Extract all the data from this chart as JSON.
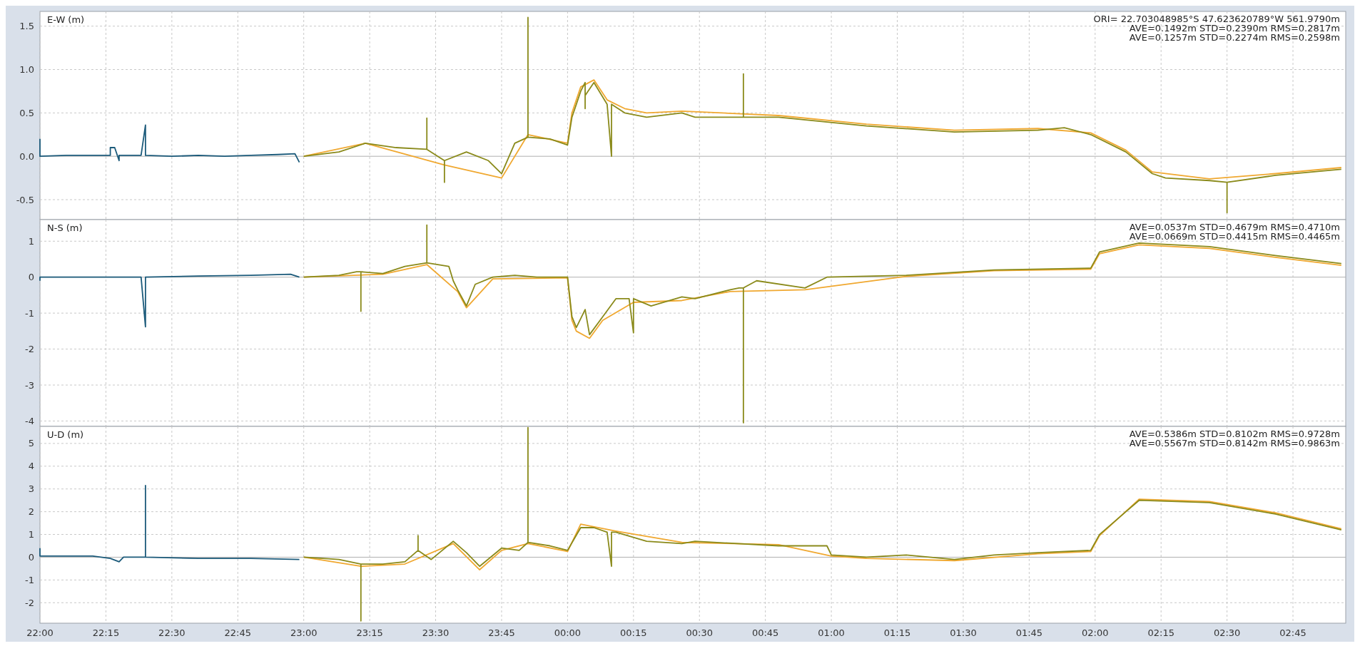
{
  "chart_data": [
    {
      "type": "line",
      "ylabel": "E-W (m)",
      "annotations": [
        "ORI= 22.703048985°S   47.623620789°W 561.9790m",
        "AVE=0.1492m STD=0.2390m RMS=0.2817m",
        "AVE=0.1257m STD=0.2274m RMS=0.2598m"
      ],
      "xlim": [
        "2000-01-01T22:00",
        "2000-01-02T02:57"
      ],
      "xticks": [
        {
          "value": "2000-01-01T22:00",
          "label": null
        },
        {
          "value": "2000-01-01T22:15",
          "label": null
        },
        {
          "value": "2000-01-01T22:30",
          "label": null
        },
        {
          "value": "2000-01-01T22:45",
          "label": null
        },
        {
          "value": "2000-01-01T23:00",
          "label": null
        },
        {
          "value": "2000-01-01T23:15",
          "label": null
        },
        {
          "value": "2000-01-01T23:30",
          "label": null
        },
        {
          "value": "2000-01-01T23:45",
          "label": null
        },
        {
          "value": "2000-01-02T00:00",
          "label": null
        },
        {
          "value": "2000-01-02T00:15",
          "label": null
        },
        {
          "value": "2000-01-02T00:30",
          "label": null
        },
        {
          "value": "2000-01-02T00:45",
          "label": null
        },
        {
          "value": "2000-01-02T01:00",
          "label": null
        },
        {
          "value": "2000-01-02T01:15",
          "label": null
        },
        {
          "value": "2000-01-02T01:30",
          "label": null
        },
        {
          "value": "2000-01-02T01:45",
          "label": null
        },
        {
          "value": "2000-01-02T02:00",
          "label": null
        },
        {
          "value": "2000-01-02T02:15",
          "label": null
        },
        {
          "value": "2000-01-02T02:30",
          "label": null
        },
        {
          "value": "2000-01-02T02:45",
          "label": null
        }
      ],
      "ylim": [
        -0.73,
        1.67
      ],
      "yticks": [
        {
          "value": -0.5,
          "label": "-0.5"
        },
        {
          "value": 0,
          "label": "0.0"
        },
        {
          "value": 0.5,
          "label": "0.5"
        },
        {
          "value": 1,
          "label": "1.0"
        },
        {
          "value": 1.5,
          "label": "1.5"
        }
      ],
      "grid": true,
      "tick_labels": "y",
      "series": [
        {
          "color": "#1b5a7a",
          "x": [
            "2000-01-01T22:00",
            "2000-01-01T22:00",
            "2000-01-01T22:06",
            "2000-01-01T22:12",
            "2000-01-01T22:16",
            "2000-01-01T22:16",
            "2000-01-01T22:17",
            "2000-01-01T22:18",
            "2000-01-01T22:18",
            "2000-01-01T22:23",
            "2000-01-01T22:24",
            "2000-01-01T22:24",
            "2000-01-01T22:30",
            "2000-01-01T22:36",
            "2000-01-01T22:42",
            "2000-01-01T22:48",
            "2000-01-01T22:54",
            "2000-01-01T22:58",
            "2000-01-01T22:59"
          ],
          "values": [
            0.2,
            0,
            0.01,
            0.01,
            0.01,
            0.1,
            0.1,
            -0.05,
            0.01,
            0.01,
            0.36,
            0.01,
            0,
            0.01,
            0,
            0.01,
            0.02,
            0.03,
            -0.07
          ]
        },
        {
          "color": "#f0a830",
          "x": [
            "2000-01-01T23:00",
            "2000-01-01T23:14",
            "2000-01-01T23:32",
            "2000-01-01T23:45",
            "2000-01-01T23:51",
            "2000-01-02T00:00",
            "2000-01-02T00:01",
            "2000-01-02T00:03",
            "2000-01-02T00:06",
            "2000-01-02T00:09",
            "2000-01-02T00:13",
            "2000-01-02T00:18",
            "2000-01-02T00:26",
            "2000-01-02T00:48",
            "2000-01-02T01:08",
            "2000-01-02T01:28",
            "2000-01-02T01:47",
            "2000-01-02T01:59",
            "2000-01-02T02:07",
            "2000-01-02T02:13",
            "2000-01-02T02:26",
            "2000-01-02T02:41",
            "2000-01-02T02:56"
          ],
          "values": [
            0,
            0.15,
            -0.1,
            -0.25,
            0.25,
            0.15,
            0.5,
            0.8,
            0.88,
            0.65,
            0.55,
            0.5,
            0.52,
            0.47,
            0.37,
            0.3,
            0.32,
            0.27,
            0.07,
            -0.18,
            -0.26,
            -0.2,
            -0.13
          ]
        },
        {
          "color": "#8a8a1a",
          "x": [
            "2000-01-01T23:00",
            "2000-01-01T23:08",
            "2000-01-01T23:14",
            "2000-01-01T23:21",
            "2000-01-01T23:28",
            "2000-01-01T23:28",
            "2000-01-01T23:28",
            "2000-01-01T23:32",
            "2000-01-01T23:32",
            "2000-01-01T23:32",
            "2000-01-01T23:37",
            "2000-01-01T23:42",
            "2000-01-01T23:45",
            "2000-01-01T23:48",
            "2000-01-01T23:51",
            "2000-01-01T23:51",
            "2000-01-01T23:51",
            "2000-01-01T23:56",
            "2000-01-02T00:00",
            "2000-01-02T00:01",
            "2000-01-02T00:03",
            "2000-01-02T00:04",
            "2000-01-02T00:04",
            "2000-01-02T00:04",
            "2000-01-02T00:06",
            "2000-01-02T00:09",
            "2000-01-02T00:10",
            "2000-01-02T00:10",
            "2000-01-02T00:13",
            "2000-01-02T00:18",
            "2000-01-02T00:26",
            "2000-01-02T00:29",
            "2000-01-02T00:40",
            "2000-01-02T00:40",
            "2000-01-02T00:40",
            "2000-01-02T00:48",
            "2000-01-02T01:08",
            "2000-01-02T01:28",
            "2000-01-02T01:47",
            "2000-01-02T01:53",
            "2000-01-02T01:59",
            "2000-01-02T02:07",
            "2000-01-02T02:13",
            "2000-01-02T02:16",
            "2000-01-02T02:26",
            "2000-01-02T02:30",
            "2000-01-02T02:30",
            "2000-01-02T02:30",
            "2000-01-02T02:41",
            "2000-01-02T02:56"
          ],
          "values": [
            0,
            0.05,
            0.15,
            0.1,
            0.08,
            0.44,
            0.08,
            -0.05,
            -0.3,
            -0.05,
            0.05,
            -0.05,
            -0.2,
            0.15,
            0.22,
            1.6,
            0.22,
            0.2,
            0.13,
            0.45,
            0.75,
            0.85,
            0.55,
            0.7,
            0.85,
            0.6,
            0,
            0.6,
            0.5,
            0.45,
            0.5,
            0.45,
            0.45,
            0.95,
            0.45,
            0.45,
            0.35,
            0.28,
            0.3,
            0.33,
            0.25,
            0.05,
            -0.2,
            -0.25,
            -0.28,
            -0.3,
            -0.65,
            -0.3,
            -0.22,
            -0.15
          ]
        }
      ]
    },
    {
      "type": "line",
      "ylabel": "N-S (m)",
      "annotations": [
        "AVE=0.0537m STD=0.4679m RMS=0.4710m",
        "AVE=0.0669m STD=0.4415m RMS=0.4465m"
      ],
      "xlim": [
        "2000-01-01T22:00",
        "2000-01-02T02:57"
      ],
      "xticks": [
        {
          "value": "2000-01-01T22:00",
          "label": null
        },
        {
          "value": "2000-01-01T22:15",
          "label": null
        },
        {
          "value": "2000-01-01T22:30",
          "label": null
        },
        {
          "value": "2000-01-01T22:45",
          "label": null
        },
        {
          "value": "2000-01-01T23:00",
          "label": null
        },
        {
          "value": "2000-01-01T23:15",
          "label": null
        },
        {
          "value": "2000-01-01T23:30",
          "label": null
        },
        {
          "value": "2000-01-01T23:45",
          "label": null
        },
        {
          "value": "2000-01-02T00:00",
          "label": null
        },
        {
          "value": "2000-01-02T00:15",
          "label": null
        },
        {
          "value": "2000-01-02T00:30",
          "label": null
        },
        {
          "value": "2000-01-02T00:45",
          "label": null
        },
        {
          "value": "2000-01-02T01:00",
          "label": null
        },
        {
          "value": "2000-01-02T01:15",
          "label": null
        },
        {
          "value": "2000-01-02T01:30",
          "label": null
        },
        {
          "value": "2000-01-02T01:45",
          "label": null
        },
        {
          "value": "2000-01-02T02:00",
          "label": null
        },
        {
          "value": "2000-01-02T02:15",
          "label": null
        },
        {
          "value": "2000-01-02T02:30",
          "label": null
        },
        {
          "value": "2000-01-02T02:45",
          "label": null
        }
      ],
      "ylim": [
        -4.15,
        1.6
      ],
      "yticks": [
        -4,
        -3,
        -2,
        -1,
        0,
        1
      ],
      "grid": true,
      "tick_labels": "y",
      "series": [
        {
          "color": "#1b5a7a",
          "x": [
            "2000-01-01T22:00",
            "2000-01-01T22:00",
            "2000-01-01T22:12",
            "2000-01-01T22:23",
            "2000-01-01T22:24",
            "2000-01-01T22:24",
            "2000-01-01T22:36",
            "2000-01-01T22:48",
            "2000-01-01T22:57",
            "2000-01-01T22:59"
          ],
          "values": [
            -0.1,
            0,
            0,
            0,
            -1.38,
            0,
            0.03,
            0.05,
            0.08,
            0
          ]
        },
        {
          "color": "#f0a830",
          "x": [
            "2000-01-01T23:00",
            "2000-01-01T23:18",
            "2000-01-01T23:28",
            "2000-01-01T23:35",
            "2000-01-01T23:37",
            "2000-01-01T23:43",
            "2000-01-02T00:00",
            "2000-01-02T00:01",
            "2000-01-02T00:02",
            "2000-01-02T00:05",
            "2000-01-02T00:08",
            "2000-01-02T00:15",
            "2000-01-02T00:26",
            "2000-01-02T00:37",
            "2000-01-02T00:54",
            "2000-01-02T01:17",
            "2000-01-02T01:37",
            "2000-01-02T01:59",
            "2000-01-02T02:01",
            "2000-01-02T02:10",
            "2000-01-02T02:26",
            "2000-01-02T02:41",
            "2000-01-02T02:56"
          ],
          "values": [
            0,
            0.08,
            0.35,
            -0.4,
            -0.85,
            -0.05,
            -0.02,
            -1.2,
            -1.5,
            -1.7,
            -1.2,
            -0.7,
            -0.65,
            -0.4,
            -0.35,
            0.02,
            0.18,
            0.22,
            0.65,
            0.9,
            0.8,
            0.55,
            0.33
          ]
        },
        {
          "color": "#8a8a1a",
          "x": [
            "2000-01-01T23:00",
            "2000-01-01T23:08",
            "2000-01-01T23:12",
            "2000-01-01T23:13",
            "2000-01-01T23:13",
            "2000-01-01T23:13",
            "2000-01-01T23:18",
            "2000-01-01T23:23",
            "2000-01-01T23:28",
            "2000-01-01T23:28",
            "2000-01-01T23:28",
            "2000-01-01T23:33",
            "2000-01-01T23:34",
            "2000-01-01T23:35",
            "2000-01-01T23:37",
            "2000-01-01T23:39",
            "2000-01-01T23:43",
            "2000-01-01T23:48",
            "2000-01-01T23:53",
            "2000-01-02T00:00",
            "2000-01-02T00:01",
            "2000-01-02T00:02",
            "2000-01-02T00:04",
            "2000-01-02T00:05",
            "2000-01-02T00:08",
            "2000-01-02T00:11",
            "2000-01-02T00:14",
            "2000-01-02T00:15",
            "2000-01-02T00:15",
            "2000-01-02T00:19",
            "2000-01-02T00:26",
            "2000-01-02T00:29",
            "2000-01-02T00:37",
            "2000-01-02T00:39",
            "2000-01-02T00:40",
            "2000-01-02T00:40",
            "2000-01-02T00:40",
            "2000-01-02T00:43",
            "2000-01-02T00:54",
            "2000-01-02T00:59",
            "2000-01-02T01:17",
            "2000-01-02T01:37",
            "2000-01-02T01:59",
            "2000-01-02T02:01",
            "2000-01-02T02:10",
            "2000-01-02T02:26",
            "2000-01-02T02:41",
            "2000-01-02T02:56"
          ],
          "values": [
            0,
            0.05,
            0.15,
            0.15,
            -0.95,
            0.15,
            0.1,
            0.3,
            0.4,
            1.45,
            0.4,
            0.3,
            -0.1,
            -0.35,
            -0.8,
            -0.2,
            0,
            0.05,
            0,
            0,
            -1.1,
            -1.4,
            -0.9,
            -1.6,
            -1.1,
            -0.6,
            -0.6,
            -1.55,
            -0.6,
            -0.8,
            -0.55,
            -0.6,
            -0.35,
            -0.3,
            -0.3,
            -4.05,
            -0.3,
            -0.1,
            -0.3,
            0,
            0.05,
            0.2,
            0.25,
            0.7,
            0.95,
            0.85,
            0.6,
            0.38
          ]
        }
      ]
    },
    {
      "type": "line",
      "ylabel": "U-D (m)",
      "annotations": [
        "AVE=0.5386m STD=0.8102m RMS=0.9728m",
        "AVE=0.5567m STD=0.8142m RMS=0.9863m"
      ],
      "xlim": [
        "2000-01-01T22:00",
        "2000-01-02T02:57"
      ],
      "xticks": [
        {
          "value": "2000-01-01T22:00",
          "label": "22:00"
        },
        {
          "value": "2000-01-01T22:15",
          "label": "22:15"
        },
        {
          "value": "2000-01-01T22:30",
          "label": "22:30"
        },
        {
          "value": "2000-01-01T22:45",
          "label": "22:45"
        },
        {
          "value": "2000-01-01T23:00",
          "label": "23:00"
        },
        {
          "value": "2000-01-01T23:15",
          "label": "23:15"
        },
        {
          "value": "2000-01-01T23:30",
          "label": "23:30"
        },
        {
          "value": "2000-01-01T23:45",
          "label": "23:45"
        },
        {
          "value": "2000-01-02T00:00",
          "label": "00:00"
        },
        {
          "value": "2000-01-02T00:15",
          "label": "00:15"
        },
        {
          "value": "2000-01-02T00:30",
          "label": "00:30"
        },
        {
          "value": "2000-01-02T00:45",
          "label": "00:45"
        },
        {
          "value": "2000-01-02T01:00",
          "label": "01:00"
        },
        {
          "value": "2000-01-02T01:15",
          "label": "01:15"
        },
        {
          "value": "2000-01-02T01:30",
          "label": "01:30"
        },
        {
          "value": "2000-01-02T01:45",
          "label": "01:45"
        },
        {
          "value": "2000-01-02T02:00",
          "label": "02:00"
        },
        {
          "value": "2000-01-02T02:15",
          "label": "02:15"
        },
        {
          "value": "2000-01-02T02:30",
          "label": "02:30"
        },
        {
          "value": "2000-01-02T02:45",
          "label": "02:45"
        }
      ],
      "ylim": [
        -2.9,
        5.75
      ],
      "yticks": [
        -2,
        -1,
        0,
        1,
        2,
        3,
        4,
        5
      ],
      "grid": true,
      "series": [
        {
          "color": "#1b5a7a",
          "x": [
            "2000-01-01T22:00",
            "2000-01-01T22:00",
            "2000-01-01T22:12",
            "2000-01-01T22:16",
            "2000-01-01T22:18",
            "2000-01-01T22:19",
            "2000-01-01T22:24",
            "2000-01-01T22:24",
            "2000-01-01T22:24",
            "2000-01-01T22:36",
            "2000-01-01T22:48",
            "2000-01-01T22:59"
          ],
          "values": [
            0.4,
            0.05,
            0.05,
            -0.05,
            -0.2,
            0,
            0,
            3.15,
            0,
            -0.05,
            -0.05,
            -0.1
          ]
        },
        {
          "color": "#f0a830",
          "x": [
            "2000-01-01T23:00",
            "2000-01-01T23:13",
            "2000-01-01T23:23",
            "2000-01-01T23:34",
            "2000-01-01T23:40",
            "2000-01-01T23:45",
            "2000-01-01T23:51",
            "2000-01-02T00:00",
            "2000-01-02T00:03",
            "2000-01-02T00:11",
            "2000-01-02T00:26",
            "2000-01-02T00:48",
            "2000-01-02T01:00",
            "2000-01-02T01:08",
            "2000-01-02T01:28",
            "2000-01-02T01:47",
            "2000-01-02T01:59",
            "2000-01-02T02:01",
            "2000-01-02T02:10",
            "2000-01-02T02:26",
            "2000-01-02T02:41",
            "2000-01-02T02:56"
          ],
          "values": [
            0,
            -0.4,
            -0.3,
            0.6,
            -0.55,
            0.3,
            0.6,
            0.25,
            1.45,
            1.15,
            0.65,
            0.55,
            0.05,
            -0.05,
            -0.15,
            0.15,
            0.25,
            0.95,
            2.55,
            2.45,
            1.95,
            1.25
          ]
        },
        {
          "color": "#8a8a1a",
          "x": [
            "2000-01-01T23:00",
            "2000-01-01T23:08",
            "2000-01-01T23:13",
            "2000-01-01T23:13",
            "2000-01-01T23:13",
            "2000-01-01T23:18",
            "2000-01-01T23:23",
            "2000-01-01T23:26",
            "2000-01-01T23:26",
            "2000-01-01T23:26",
            "2000-01-01T23:29",
            "2000-01-01T23:34",
            "2000-01-01T23:37",
            "2000-01-01T23:40",
            "2000-01-01T23:45",
            "2000-01-01T23:49",
            "2000-01-01T23:51",
            "2000-01-01T23:51",
            "2000-01-01T23:51",
            "2000-01-01T23:56",
            "2000-01-02T00:00",
            "2000-01-02T00:03",
            "2000-01-02T00:06",
            "2000-01-02T00:09",
            "2000-01-02T00:10",
            "2000-01-02T00:10",
            "2000-01-02T00:11",
            "2000-01-02T00:18",
            "2000-01-02T00:26",
            "2000-01-02T00:29",
            "2000-01-02T00:48",
            "2000-01-02T00:59",
            "2000-01-02T01:00",
            "2000-01-02T01:08",
            "2000-01-02T01:17",
            "2000-01-02T01:28",
            "2000-01-02T01:37",
            "2000-01-02T01:47",
            "2000-01-02T01:59",
            "2000-01-02T02:01",
            "2000-01-02T02:07",
            "2000-01-02T02:10",
            "2000-01-02T02:26",
            "2000-01-02T02:41",
            "2000-01-02T02:56"
          ],
          "values": [
            0,
            -0.1,
            -0.3,
            -2.8,
            -0.3,
            -0.3,
            -0.2,
            0.3,
            0.95,
            0.3,
            -0.1,
            0.7,
            0.2,
            -0.4,
            0.4,
            0.3,
            0.65,
            5.7,
            0.65,
            0.5,
            0.3,
            1.3,
            1.3,
            1.1,
            -0.4,
            1.1,
            1.1,
            0.7,
            0.6,
            0.7,
            0.5,
            0.5,
            0.1,
            0,
            0.1,
            -0.1,
            0.1,
            0.2,
            0.3,
            1,
            2,
            2.5,
            2.4,
            1.9,
            1.2
          ]
        }
      ]
    }
  ]
}
